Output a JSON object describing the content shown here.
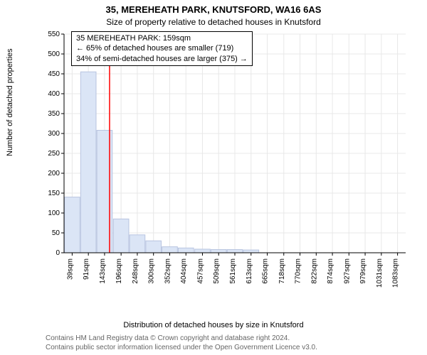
{
  "title_line1": "35, MEREHEATH PARK, KNUTSFORD, WA16 6AS",
  "title_line2": "Size of property relative to detached houses in Knutsford",
  "annotation": {
    "line1": "35 MEREHEATH PARK: 159sqm",
    "line2": "← 65% of detached houses are smaller (719)",
    "line3": "34% of semi-detached houses are larger (375) →"
  },
  "ylabel": "Number of detached properties",
  "xlabel": "Distribution of detached houses by size in Knutsford",
  "attribution": {
    "line1": "Contains HM Land Registry data © Crown copyright and database right 2024.",
    "line2": "Contains public sector information licensed under the Open Government Licence v3.0."
  },
  "chart": {
    "type": "histogram",
    "ylim": [
      0,
      550
    ],
    "ytick_step": 50,
    "yticks": [
      0,
      50,
      100,
      150,
      200,
      250,
      300,
      350,
      400,
      450,
      500,
      550
    ],
    "xticks": [
      39,
      91,
      143,
      196,
      248,
      300,
      352,
      404,
      457,
      509,
      561,
      613,
      665,
      718,
      770,
      822,
      874,
      927,
      979,
      1031,
      1083
    ],
    "bar_centers": [
      39,
      91,
      143,
      196,
      248,
      300,
      352,
      404,
      457,
      509,
      561,
      613,
      665,
      718,
      770,
      822,
      874,
      927,
      979,
      1031,
      1083
    ],
    "values": [
      140,
      455,
      308,
      85,
      45,
      30,
      15,
      12,
      9,
      8,
      8,
      7,
      0,
      0,
      0,
      0,
      0,
      0,
      0,
      0,
      0
    ],
    "bar_fill": "#dbe5f6",
    "bar_stroke": "#b8c4e0",
    "bar_width": 0.95,
    "grid_color": "#e8e8e8",
    "background": "#ffffff",
    "marker_x": 159,
    "marker_color": "#ff0000",
    "axis_color": "#000000",
    "fontsize_tick": 10,
    "fontsize_label": 11,
    "fontsize_title": 13
  }
}
